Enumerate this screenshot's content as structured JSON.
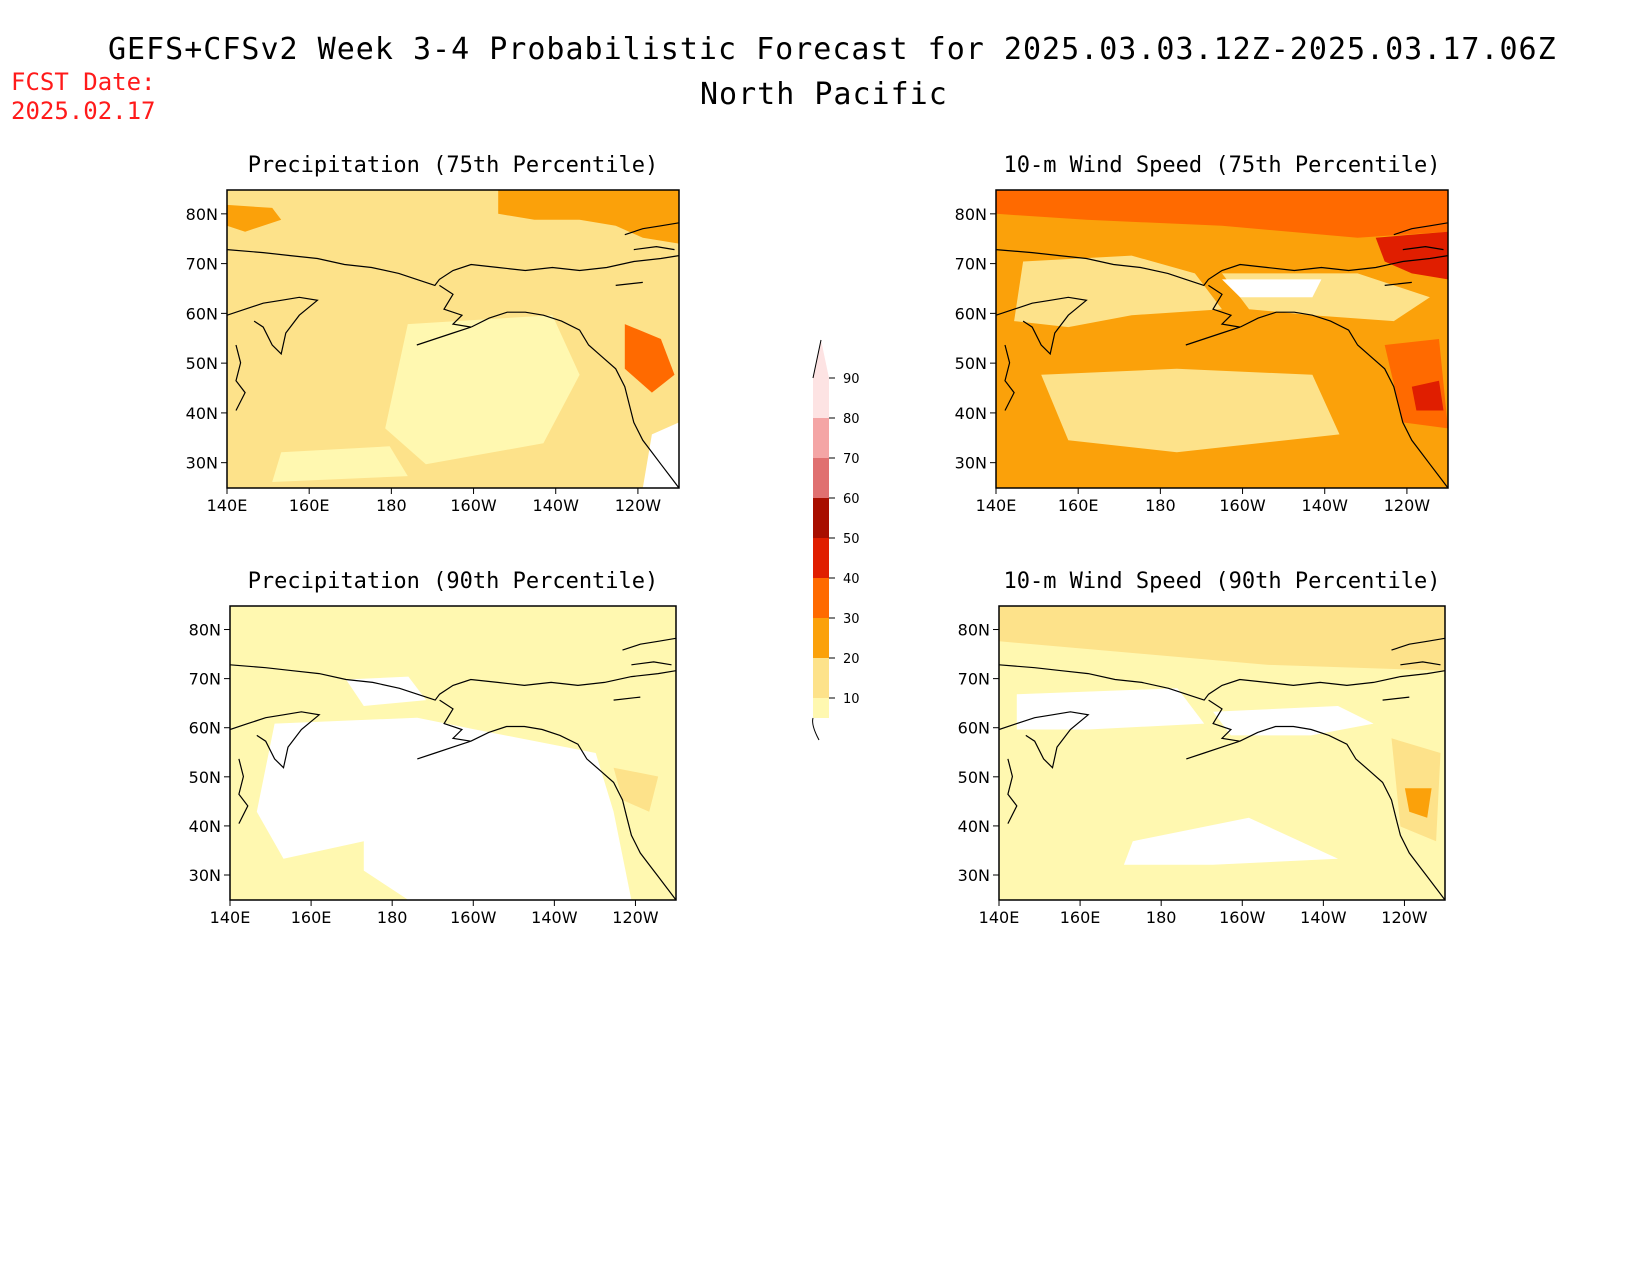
{
  "header": {
    "title": "GEFS+CFSv2 Week 3-4 Probabilistic Forecast for 2025.03.03.12Z-2025.03.17.06Z",
    "subtitle": "North Pacific",
    "fcst_label": "FCST Date:",
    "fcst_date": "2025.02.17"
  },
  "colors": {
    "c10": "#fff8b0",
    "c20": "#fde28a",
    "c30": "#fba10a",
    "c40": "#ff6a00",
    "c50": "#e01e00",
    "c60": "#a80e00",
    "c70": "#e07070",
    "c80": "#f4a5a5",
    "c90": "#fde3e3",
    "coast": "#000000"
  },
  "axes": {
    "lon_labels": [
      "140E",
      "160E",
      "180",
      "160W",
      "140W",
      "120W"
    ],
    "lat_labels": [
      "80N",
      "70N",
      "60N",
      "50N",
      "40N",
      "30N"
    ]
  },
  "colorbar": {
    "levels": [
      "10",
      "20",
      "30",
      "40",
      "50",
      "60",
      "70",
      "80",
      "90"
    ]
  },
  "panels": [
    {
      "title": "Precipitation (75th Percentile)",
      "base": "c20"
    },
    {
      "title": "10-m Wind Speed (75th Percentile)",
      "base": "c30"
    },
    {
      "title": "Precipitation (90th Percentile)",
      "base": "c10"
    },
    {
      "title": "10-m Wind Speed (90th Percentile)",
      "base": "c10"
    }
  ]
}
